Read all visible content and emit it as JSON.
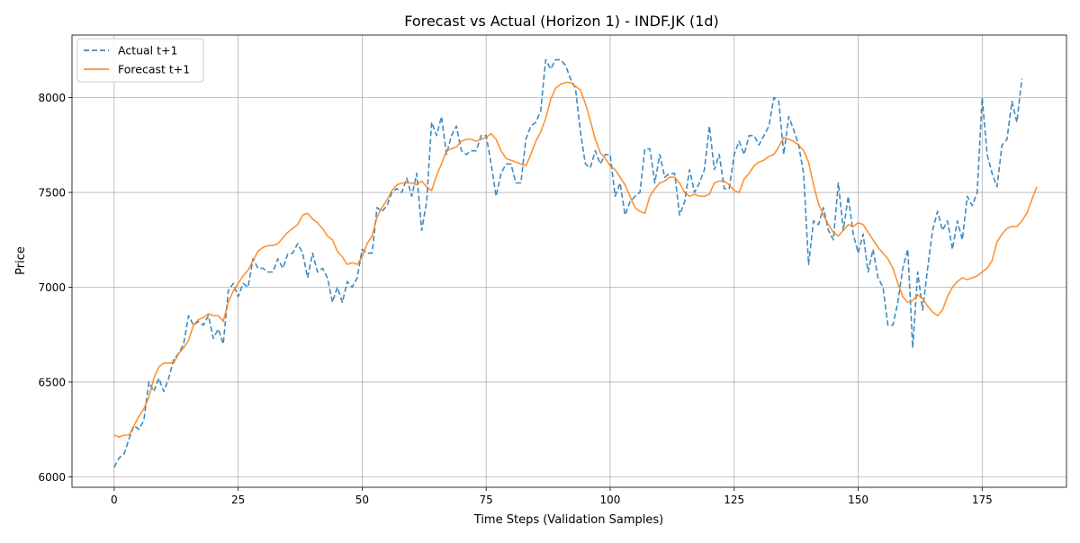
{
  "chart_data": {
    "type": "line",
    "title": "Forecast vs Actual (Horizon 1) - INDF.JK (1d)",
    "xlabel": "Time Steps (Validation Samples)",
    "ylabel": "Price",
    "xlim": [
      -8.5,
      192
    ],
    "ylim": [
      5945,
      8330
    ],
    "x_ticks": [
      0,
      25,
      50,
      75,
      100,
      125,
      150,
      175
    ],
    "y_ticks": [
      6000,
      6500,
      7000,
      7500,
      8000
    ],
    "grid": true,
    "legend_position": "top-left",
    "series": [
      {
        "name": "Actual t+1",
        "style": "dashed",
        "color": "#1f77b4",
        "values": [
          6050,
          6100,
          6120,
          6200,
          6270,
          6250,
          6300,
          6500,
          6450,
          6520,
          6450,
          6520,
          6620,
          6650,
          6700,
          6850,
          6800,
          6820,
          6800,
          6850,
          6730,
          6780,
          6700,
          6980,
          7020,
          6950,
          7020,
          7000,
          7150,
          7100,
          7100,
          7080,
          7080,
          7150,
          7100,
          7175,
          7180,
          7230,
          7180,
          7050,
          7180,
          7080,
          7100,
          7050,
          6920,
          7000,
          6920,
          7030,
          7000,
          7050,
          7200,
          7180,
          7180,
          7420,
          7400,
          7430,
          7500,
          7520,
          7500,
          7575,
          7480,
          7600,
          7300,
          7450,
          7870,
          7800,
          7900,
          7700,
          7800,
          7850,
          7720,
          7700,
          7720,
          7720,
          7800,
          7800,
          7650,
          7480,
          7600,
          7650,
          7650,
          7550,
          7550,
          7780,
          7850,
          7870,
          7930,
          8200,
          8150,
          8200,
          8200,
          8170,
          8100,
          8050,
          7820,
          7650,
          7630,
          7720,
          7650,
          7700,
          7700,
          7480,
          7550,
          7380,
          7450,
          7480,
          7500,
          7730,
          7730,
          7550,
          7700,
          7580,
          7600,
          7600,
          7380,
          7450,
          7620,
          7500,
          7550,
          7620,
          7850,
          7620,
          7700,
          7520,
          7520,
          7700,
          7770,
          7700,
          7800,
          7800,
          7750,
          7800,
          7850,
          8000,
          7980,
          7700,
          7900,
          7830,
          7750,
          7600,
          7120,
          7350,
          7330,
          7420,
          7300,
          7250,
          7550,
          7300,
          7480,
          7280,
          7180,
          7280,
          7080,
          7200,
          7050,
          7000,
          6800,
          6800,
          6920,
          7100,
          7200,
          6680,
          7080,
          6880,
          7100,
          7300,
          7400,
          7300,
          7350,
          7200,
          7350,
          7250,
          7480,
          7430,
          7500,
          8000,
          7700,
          7600,
          7530,
          7750,
          7780,
          7980,
          7870,
          8100
        ]
      },
      {
        "name": "Forecast t+1",
        "style": "solid",
        "color": "#ff7f0e",
        "values": [
          6220,
          6210,
          6220,
          6220,
          6270,
          6320,
          6360,
          6420,
          6520,
          6580,
          6600,
          6600,
          6600,
          6650,
          6680,
          6720,
          6800,
          6830,
          6840,
          6860,
          6850,
          6850,
          6820,
          6920,
          6980,
          7020,
          7060,
          7090,
          7140,
          7190,
          7210,
          7220,
          7220,
          7230,
          7260,
          7290,
          7310,
          7330,
          7380,
          7390,
          7360,
          7340,
          7310,
          7270,
          7250,
          7190,
          7160,
          7120,
          7130,
          7120,
          7160,
          7230,
          7270,
          7370,
          7420,
          7460,
          7510,
          7540,
          7550,
          7550,
          7550,
          7540,
          7560,
          7530,
          7510,
          7590,
          7650,
          7720,
          7730,
          7740,
          7770,
          7780,
          7780,
          7770,
          7780,
          7790,
          7810,
          7780,
          7720,
          7680,
          7670,
          7660,
          7650,
          7640,
          7700,
          7770,
          7820,
          7890,
          7990,
          8050,
          8070,
          8080,
          8080,
          8060,
          8040,
          7970,
          7880,
          7780,
          7710,
          7680,
          7640,
          7620,
          7580,
          7540,
          7480,
          7420,
          7400,
          7390,
          7480,
          7520,
          7550,
          7560,
          7580,
          7580,
          7550,
          7500,
          7480,
          7490,
          7480,
          7480,
          7490,
          7550,
          7560,
          7560,
          7540,
          7510,
          7500,
          7570,
          7600,
          7640,
          7660,
          7670,
          7690,
          7700,
          7740,
          7790,
          7780,
          7770,
          7750,
          7720,
          7660,
          7540,
          7440,
          7380,
          7330,
          7290,
          7270,
          7300,
          7330,
          7320,
          7340,
          7330,
          7290,
          7250,
          7210,
          7180,
          7150,
          7100,
          7020,
          6950,
          6920,
          6930,
          6960,
          6940,
          6900,
          6870,
          6850,
          6880,
          6950,
          7000,
          7030,
          7050,
          7040,
          7050,
          7060,
          7080,
          7100,
          7140,
          7240,
          7280,
          7310,
          7320,
          7320,
          7350,
          7390,
          7460,
          7530
        ]
      }
    ]
  }
}
